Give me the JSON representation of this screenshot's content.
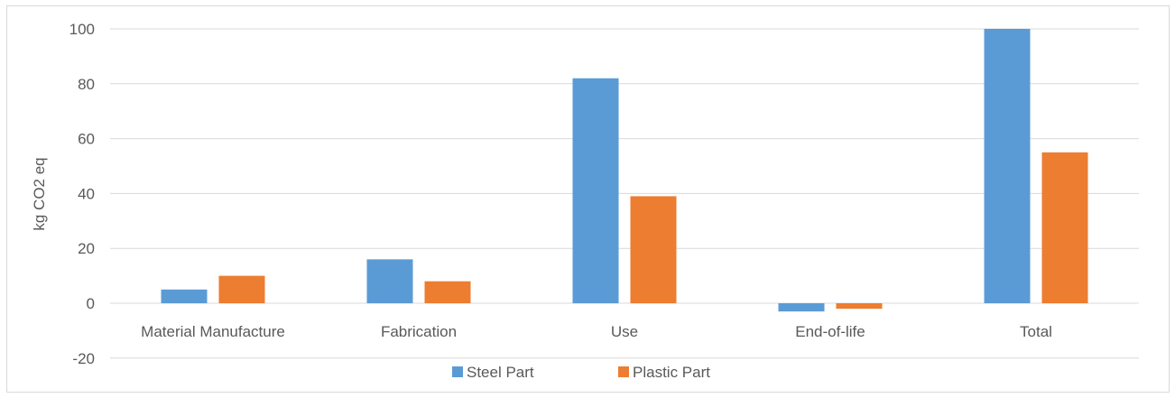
{
  "chart_data": {
    "type": "bar",
    "categories": [
      "Material Manufacture",
      "Fabrication",
      "Use",
      "End-of-life",
      "Total"
    ],
    "series": [
      {
        "name": "Steel Part",
        "color": "#5b9bd5",
        "values": [
          5,
          16,
          82,
          -3,
          100
        ]
      },
      {
        "name": "Plastic Part",
        "color": "#ed7d31",
        "values": [
          10,
          8,
          39,
          -2,
          55
        ]
      }
    ],
    "ylabel": "kg CO2 eq",
    "xlabel": "",
    "ylim": [
      -20,
      100
    ],
    "yticks": [
      -20,
      0,
      20,
      40,
      60,
      80,
      100
    ],
    "grid": true,
    "legend_position": "bottom"
  }
}
